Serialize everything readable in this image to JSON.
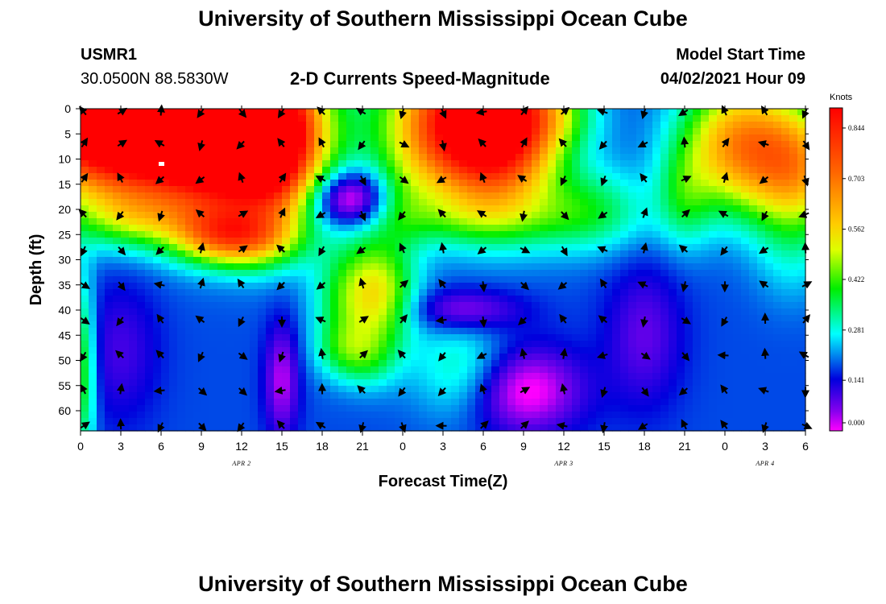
{
  "page": {
    "title": "University of Southern Mississippi Ocean Cube",
    "footer_title": "University of Southern Mississippi Ocean Cube"
  },
  "header": {
    "station_id": "USMR1",
    "coordinates": "30.0500N  88.5830W",
    "plot_title": "2-D Currents Speed-Magnitude",
    "model_start_label": "Model Start Time",
    "model_start_value": "04/02/2021 Hour 09"
  },
  "colors": {
    "arrow": "#000000",
    "frame": "#000000",
    "marker": "#ffffff"
  },
  "chart_data": {
    "type": "heatmap",
    "title": "2-D Currents Speed-Magnitude",
    "xlabel": "Forecast Time(Z)",
    "ylabel": "Depth (ft)",
    "x_hours": [
      0,
      54
    ],
    "y_depth_ft": [
      0,
      64
    ],
    "x_ticks": [
      {
        "h": 0,
        "label": "0"
      },
      {
        "h": 3,
        "label": "3"
      },
      {
        "h": 6,
        "label": "6"
      },
      {
        "h": 9,
        "label": "9"
      },
      {
        "h": 12,
        "label": "12"
      },
      {
        "h": 15,
        "label": "15"
      },
      {
        "h": 18,
        "label": "18"
      },
      {
        "h": 21,
        "label": "21"
      },
      {
        "h": 24,
        "label": "0"
      },
      {
        "h": 27,
        "label": "3"
      },
      {
        "h": 30,
        "label": "6"
      },
      {
        "h": 33,
        "label": "9"
      },
      {
        "h": 36,
        "label": "12"
      },
      {
        "h": 39,
        "label": "15"
      },
      {
        "h": 42,
        "label": "18"
      },
      {
        "h": 45,
        "label": "21"
      },
      {
        "h": 48,
        "label": "0"
      },
      {
        "h": 51,
        "label": "3"
      },
      {
        "h": 54,
        "label": "6"
      }
    ],
    "date_labels": [
      {
        "h": 12,
        "label": "APR 2"
      },
      {
        "h": 36,
        "label": "APR 3"
      },
      {
        "h": 51,
        "label": "APR 4"
      }
    ],
    "y_ticks": [
      0,
      5,
      10,
      15,
      20,
      25,
      30,
      35,
      40,
      45,
      50,
      55,
      60
    ],
    "colorbar": {
      "unit": "Knots",
      "min": 0.0,
      "max": 0.9,
      "ticks": [
        {
          "value": 0.844,
          "label": "0.844"
        },
        {
          "value": 0.703,
          "label": "0.703"
        },
        {
          "value": 0.562,
          "label": "0.562"
        },
        {
          "value": 0.422,
          "label": "0.422"
        },
        {
          "value": 0.281,
          "label": "0.281"
        },
        {
          "value": 0.141,
          "label": "0.141"
        },
        {
          "value": 0.0,
          "label": "0.000"
        }
      ]
    },
    "vector_depths_ft": [
      0,
      7,
      14,
      21,
      28,
      35,
      42,
      49,
      56,
      63
    ],
    "speed_blobs": [
      {
        "h": 1,
        "d": 0,
        "sh": 4,
        "sd": 11,
        "a": 0.65
      },
      {
        "h": 7,
        "d": 3,
        "sh": 5.5,
        "sd": 10,
        "a": 0.74
      },
      {
        "h": 12,
        "d": 6,
        "sh": 4,
        "sd": 11,
        "a": 0.7
      },
      {
        "h": 14.5,
        "d": 6,
        "sh": 2,
        "sd": 11,
        "a": 0.32
      },
      {
        "h": 10,
        "d": 25,
        "sh": 2.5,
        "sd": 4,
        "a": 0.3
      },
      {
        "h": 13,
        "d": 26,
        "sh": 2.5,
        "sd": 4,
        "a": 0.25
      },
      {
        "h": 4,
        "d": 22,
        "sh": 3,
        "sd": 4,
        "a": 0.18
      },
      {
        "h": 27.5,
        "d": 3,
        "sh": 3.5,
        "sd": 10,
        "a": 0.57
      },
      {
        "h": 31.5,
        "d": 4,
        "sh": 3,
        "sd": 11,
        "a": 0.6
      },
      {
        "h": 35,
        "d": 1,
        "sh": 2.5,
        "sd": 5,
        "a": 0.15
      },
      {
        "h": 29,
        "d": 22,
        "sh": 6,
        "sd": 4,
        "a": 0.12
      },
      {
        "h": 38,
        "d": 20,
        "sh": 3,
        "sd": 6,
        "a": 0.16
      },
      {
        "h": 22,
        "d": 37,
        "sh": 2,
        "sd": 8,
        "a": 0.36
      },
      {
        "h": 19.5,
        "d": 48,
        "sh": 1.5,
        "sd": 4,
        "a": 0.12
      },
      {
        "h": 21.5,
        "d": 50,
        "sh": 1.5,
        "sd": 4,
        "a": 0.1
      },
      {
        "h": 19,
        "d": 38,
        "sh": 1.5,
        "sd": 8,
        "a": 0.1
      },
      {
        "h": 49,
        "d": 7,
        "sh": 3,
        "sd": 9,
        "a": 0.46
      },
      {
        "h": 53.5,
        "d": 12,
        "sh": 2.5,
        "sd": 9,
        "a": 0.38
      },
      {
        "h": 45,
        "d": 18,
        "sh": 1.5,
        "sd": 7,
        "a": 0.14
      },
      {
        "h": 28.5,
        "d": 52,
        "sh": 2.5,
        "sd": 7,
        "a": 0.14
      },
      {
        "h": 24,
        "d": 18,
        "sh": 1.5,
        "sd": 6,
        "a": 0.08
      },
      {
        "h": 53,
        "d": 30,
        "sh": 2,
        "sd": 7,
        "a": 0.06
      },
      {
        "h": 0.3,
        "d": 52,
        "sh": 0.6,
        "sd": 13,
        "a": 0.22
      }
    ],
    "slow_blobs": [
      {
        "h": 20,
        "d": 18,
        "sh": 2,
        "sd": 4,
        "a": 0.28
      },
      {
        "h": 28.5,
        "d": 40,
        "sh": 3,
        "sd": 3,
        "a": 0.14
      },
      {
        "h": 33,
        "d": 56,
        "sh": 3,
        "sd": 6,
        "a": 0.2
      },
      {
        "h": 15,
        "d": 54,
        "sh": 0.9,
        "sd": 8,
        "a": 0.15
      },
      {
        "h": 3,
        "d": 48,
        "sh": 2,
        "sd": 10,
        "a": 0.08
      },
      {
        "h": 42,
        "d": 45,
        "sh": 2,
        "sd": 10,
        "a": 0.1
      }
    ],
    "base_speed": 0.18
  }
}
